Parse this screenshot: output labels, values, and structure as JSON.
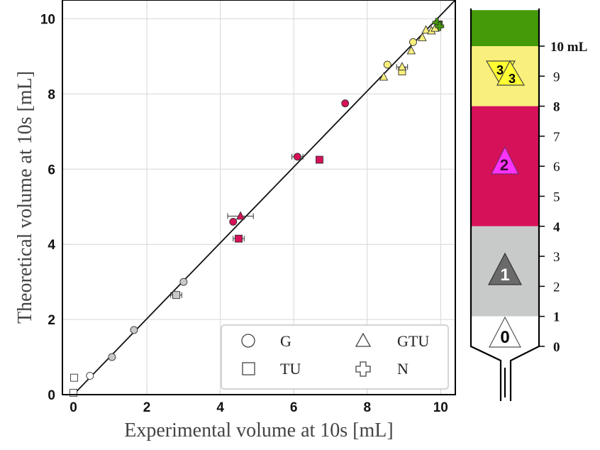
{
  "chart_data": {
    "type": "scatter",
    "xlabel": "Experimental volume at 10s [mL]",
    "ylabel": "Theoretical volume at 10s [mL]",
    "xlim": [
      -0.3,
      10.4
    ],
    "ylim": [
      0,
      10.5
    ],
    "xticks": [
      0,
      2,
      4,
      6,
      8,
      10
    ],
    "yticks": [
      0,
      2,
      4,
      6,
      8,
      10
    ],
    "grid": true,
    "legend_position": "bottom-right",
    "reference_line": {
      "from": [
        0,
        0
      ],
      "to": [
        10.4,
        10.5
      ]
    },
    "colors": {
      "zone0": "#ffffff",
      "zone1": "#c8cac9",
      "zone2": "#d6115a",
      "zone3": "#f8ef7c",
      "zone4": "#449a08"
    },
    "legend": [
      {
        "label": "G",
        "marker": "circle"
      },
      {
        "label": "GTU",
        "marker": "triangle"
      },
      {
        "label": "TU",
        "marker": "square"
      },
      {
        "label": "N",
        "marker": "plus"
      }
    ],
    "series": [
      {
        "name": "G",
        "marker": "circle",
        "points": [
          {
            "x": 0.45,
            "y": 0.5,
            "zone": 0
          },
          {
            "x": 1.05,
            "y": 1.0,
            "zone": 1
          },
          {
            "x": 1.65,
            "y": 1.72,
            "zone": 1
          },
          {
            "x": 3.0,
            "y": 3.0,
            "zone": 1
          },
          {
            "x": 4.35,
            "y": 4.6,
            "zone": 2
          },
          {
            "x": 6.1,
            "y": 6.33,
            "zone": 2,
            "xerr": 0.15
          },
          {
            "x": 7.4,
            "y": 7.75,
            "zone": 2
          },
          {
            "x": 8.55,
            "y": 8.78,
            "zone": 3
          },
          {
            "x": 9.25,
            "y": 9.38,
            "zone": 3
          }
        ]
      },
      {
        "name": "TU",
        "marker": "square",
        "points": [
          {
            "x": 0.0,
            "y": 0.05,
            "zone": 0
          },
          {
            "x": 0.02,
            "y": 0.45,
            "zone": 0
          },
          {
            "x": 2.8,
            "y": 2.65,
            "zone": 1,
            "xerr": 0.15
          },
          {
            "x": 4.5,
            "y": 4.15,
            "zone": 2,
            "xerr": 0.15
          },
          {
            "x": 6.7,
            "y": 6.25,
            "zone": 2
          },
          {
            "x": 8.95,
            "y": 8.6,
            "zone": 3
          },
          {
            "x": 9.95,
            "y": 9.85,
            "zone": 4
          }
        ]
      },
      {
        "name": "GTU",
        "marker": "triangle",
        "points": [
          {
            "x": 4.55,
            "y": 4.75,
            "zone": 2,
            "xerr": 0.35
          },
          {
            "x": 8.45,
            "y": 8.45,
            "zone": 3
          },
          {
            "x": 8.95,
            "y": 8.72,
            "zone": 3,
            "xerr": 0.15
          },
          {
            "x": 9.2,
            "y": 9.15,
            "zone": 3
          },
          {
            "x": 9.5,
            "y": 9.5,
            "zone": 3
          },
          {
            "x": 9.6,
            "y": 9.7,
            "zone": 3
          },
          {
            "x": 9.75,
            "y": 9.68,
            "zone": 3
          },
          {
            "x": 9.85,
            "y": 9.75,
            "zone": 3
          }
        ]
      },
      {
        "name": "N",
        "marker": "plus",
        "points": [
          {
            "x": 9.9,
            "y": 9.9,
            "zone": 4
          },
          {
            "x": 9.97,
            "y": 9.8,
            "zone": 4
          }
        ]
      }
    ]
  },
  "tube_scale": {
    "labels": [
      {
        "text": "10 mL",
        "value": 10,
        "bold": true
      },
      {
        "text": "9",
        "value": 9,
        "bold": false
      },
      {
        "text": "8",
        "value": 8,
        "bold": true
      },
      {
        "text": "7",
        "value": 7,
        "bold": false
      },
      {
        "text": "6",
        "value": 6,
        "bold": false
      },
      {
        "text": "5",
        "value": 5,
        "bold": false
      },
      {
        "text": "4",
        "value": 4,
        "bold": true
      },
      {
        "text": "3",
        "value": 3,
        "bold": false
      },
      {
        "text": "2",
        "value": 2,
        "bold": false
      },
      {
        "text": "1",
        "value": 1,
        "bold": true
      },
      {
        "text": "0",
        "value": 0,
        "bold": true
      }
    ],
    "zones": [
      {
        "id": "zone4",
        "from": 10,
        "to": 11.2,
        "color": "#449a08",
        "label": ""
      },
      {
        "id": "zone3",
        "from": 8,
        "to": 10,
        "color": "#f8ef7c",
        "label": "3"
      },
      {
        "id": "zone2",
        "from": 4,
        "to": 8,
        "color": "#d6115a",
        "label": "2"
      },
      {
        "id": "zone1",
        "from": 1,
        "to": 4,
        "color": "#c8cac9",
        "label": "1"
      },
      {
        "id": "zone0",
        "from": 0,
        "to": 1,
        "color": "#ffffff",
        "label": "0"
      }
    ],
    "badges": {
      "zone0": {
        "text": "0",
        "fill": "#ffffff",
        "text_color": "#000000"
      },
      "zone1": {
        "text": "1",
        "fill": "#6a6a6a",
        "text_color": "#ffffff"
      },
      "zone2": {
        "text": "2",
        "fill": "#ff33ff",
        "text_color": "#3a0a30"
      },
      "zone3a": {
        "text": "3",
        "fill": "#ffff33",
        "text_color": "#000000"
      },
      "zone3b": {
        "text": "3",
        "fill": "#ffff33",
        "text_color": "#000000"
      }
    }
  }
}
